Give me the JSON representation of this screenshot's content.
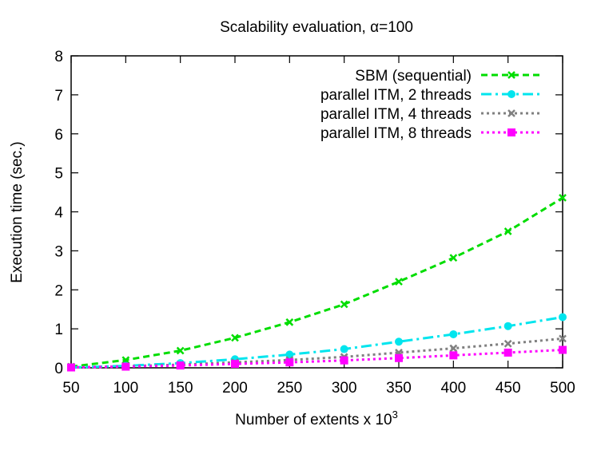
{
  "chart_data": {
    "type": "line",
    "title_prefix": "Scalability evaluation, ",
    "title_symbol": "α",
    "title_suffix": "=100",
    "xlabel": "Number of extents x 10",
    "xlabel_sup": "3",
    "ylabel": "Execution time (sec.)",
    "xlim": [
      50,
      500
    ],
    "ylim": [
      0,
      8
    ],
    "x": [
      50,
      100,
      150,
      200,
      250,
      300,
      350,
      400,
      450,
      500
    ],
    "xticks": [
      "50",
      "100",
      "150",
      "200",
      "250",
      "300",
      "350",
      "400",
      "450",
      "500"
    ],
    "yticks": [
      "0",
      "1",
      "2",
      "3",
      "4",
      "5",
      "6",
      "7",
      "8"
    ],
    "grid": false,
    "legend_position": "top-right",
    "series": [
      {
        "name": "SBM (sequential)",
        "color": "#00dd00",
        "marker": "x-mark",
        "dash": "dashed",
        "values": [
          0.03,
          0.2,
          0.44,
          0.77,
          1.17,
          1.63,
          2.21,
          2.82,
          3.5,
          4.36
        ]
      },
      {
        "name": "parallel ITM, 2 threads",
        "color": "#00e5ee",
        "marker": "circle",
        "dash": "dash-dot",
        "values": [
          0.01,
          0.05,
          0.12,
          0.22,
          0.34,
          0.48,
          0.67,
          0.86,
          1.07,
          1.3
        ]
      },
      {
        "name": "parallel ITM, 4 threads",
        "color": "#808080",
        "marker": "x-mark",
        "dash": "dotted",
        "values": [
          0.01,
          0.04,
          0.08,
          0.14,
          0.2,
          0.28,
          0.39,
          0.5,
          0.62,
          0.75
        ]
      },
      {
        "name": "parallel ITM, 8 threads",
        "color": "#ff00ff",
        "marker": "square",
        "dash": "dotted",
        "values": [
          0.01,
          0.03,
          0.06,
          0.1,
          0.14,
          0.19,
          0.25,
          0.32,
          0.39,
          0.46
        ]
      }
    ]
  }
}
